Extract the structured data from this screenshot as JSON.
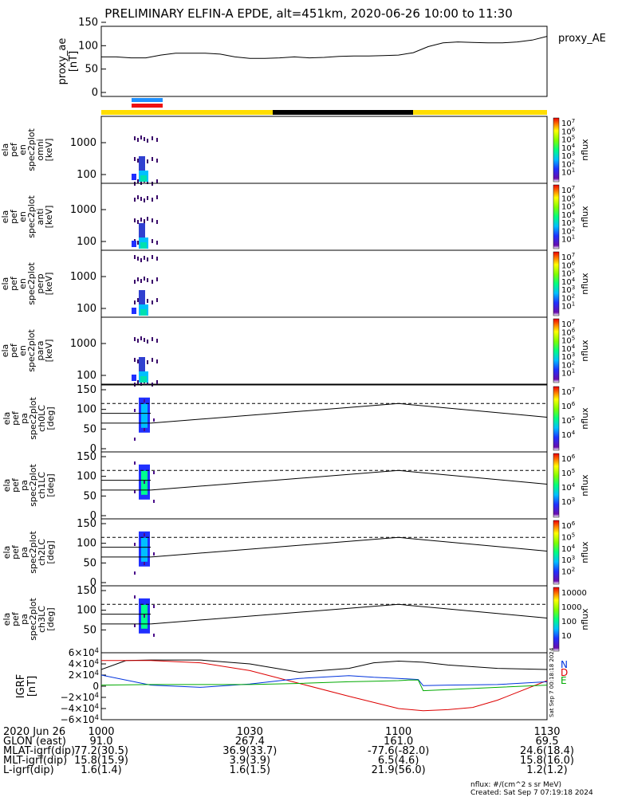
{
  "title": "PRELIMINARY ELFIN-A EPDE, alt=451km, 2020-06-26 10:00 to 11:30",
  "colors": {
    "bar_yellow": "#ffdd00",
    "bar_black": "#000000",
    "ind_blue": "#1e90ff",
    "ind_red": "#ee1111",
    "gsm_x": "#000000",
    "gsm_y": "#0033dd",
    "gsm_z": "#dd0000",
    "gsm_total": "#00aa00"
  },
  "chart_data": {
    "type": "line",
    "time_range": [
      "10:00",
      "11:30"
    ],
    "panels": [
      {
        "id": "ae",
        "ylabel_lines": [
          "proxy_ae",
          "[nT]"
        ],
        "yticks": [
          "150",
          "100",
          "50",
          "0"
        ],
        "legend": "proxy_AE",
        "ylim": [
          0,
          150
        ],
        "series": [
          {
            "x": [
              0,
              3,
              6,
              9,
              12,
              15,
              18,
              21,
              24,
              27,
              30,
              33,
              36,
              39,
              42,
              45,
              48,
              51,
              54,
              57,
              60,
              63,
              66,
              69,
              72,
              75,
              78,
              81,
              84,
              87,
              90
            ],
            "y": [
              76,
              76,
              74,
              74,
              80,
              84,
              84,
              84,
              82,
              76,
              73,
              73,
              74,
              76,
              74,
              75,
              77,
              78,
              78,
              79,
              80,
              85,
              98,
              106,
              108,
              107,
              106,
              106,
              108,
              112,
              120
            ]
          }
        ]
      },
      {
        "id": "omni",
        "ylabel_lines": [
          "ela",
          "pef",
          "en",
          "spec2plot",
          "omni",
          "[keV]"
        ],
        "yticks": [
          "1000",
          "100"
        ],
        "cbar_ticks": [
          "10^7",
          "10^6",
          "10^5",
          "10^4",
          "10^3",
          "10^2",
          "10^1"
        ],
        "cbar_label": "nflux"
      },
      {
        "id": "anti",
        "ylabel_lines": [
          "ela",
          "pef",
          "en",
          "spec2plot",
          "anti",
          "[keV]"
        ],
        "yticks": [
          "1000",
          "100"
        ],
        "cbar_ticks": [
          "10^7",
          "10^6",
          "10^5",
          "10^4",
          "10^3",
          "10^2",
          "10^1"
        ],
        "cbar_label": "nflux"
      },
      {
        "id": "perp",
        "ylabel_lines": [
          "ela",
          "pef",
          "en",
          "spec2plot",
          "perp",
          "[keV]"
        ],
        "yticks": [
          "1000",
          "100"
        ],
        "cbar_ticks": [
          "10^7",
          "10^6",
          "10^5",
          "10^4",
          "10^3",
          "10^2",
          "10^1"
        ],
        "cbar_label": "nflux"
      },
      {
        "id": "para",
        "ylabel_lines": [
          "ela",
          "pef",
          "en",
          "spec2plot",
          "para",
          "[keV]"
        ],
        "yticks": [
          "1000",
          "100"
        ],
        "cbar_ticks": [
          "10^7",
          "10^6",
          "10^5",
          "10^4",
          "10^3",
          "10^2",
          "10^1"
        ],
        "cbar_label": "nflux"
      },
      {
        "id": "ch0",
        "ylabel_lines": [
          "ela",
          "pef",
          "pa",
          "spec2plot",
          "ch0LC",
          "[deg]"
        ],
        "yticks": [
          "150",
          "100",
          "50",
          "0"
        ],
        "cbar_ticks": [
          "10^7",
          "10^6",
          "10^5",
          "10^4"
        ],
        "cbar_label": "nflux"
      },
      {
        "id": "ch1",
        "ylabel_lines": [
          "ela",
          "pef",
          "pa",
          "spec2plot",
          "ch1LC",
          "[deg]"
        ],
        "yticks": [
          "150",
          "100",
          "50",
          "0"
        ],
        "cbar_ticks": [
          "10^6",
          "10^5",
          "10^4",
          "10^3"
        ],
        "cbar_label": "nflux"
      },
      {
        "id": "ch2",
        "ylabel_lines": [
          "ela",
          "pef",
          "pa",
          "spec2plot",
          "ch2LC",
          "[deg]"
        ],
        "yticks": [
          "150",
          "100",
          "50",
          "0"
        ],
        "cbar_ticks": [
          "10^6",
          "10^5",
          "10^4",
          "10^3",
          "10^2"
        ],
        "cbar_label": "nflux"
      },
      {
        "id": "ch3",
        "ylabel_lines": [
          "ela",
          "pef",
          "pa",
          "spec2plot",
          "ch3LC",
          "[deg]"
        ],
        "yticks": [
          "150",
          "100",
          "50"
        ],
        "cbar_ticks": [
          "10000",
          "1000",
          "100",
          "10"
        ],
        "cbar_label": "nflux"
      },
      {
        "id": "igrf",
        "ylabel_lines": [
          "IGRF",
          "[nT]"
        ],
        "yticks": [
          "6×10^4",
          "4×10^4",
          "2×10^4",
          "0",
          "−2×10^4",
          "−4×10^4",
          "−6×10^4"
        ],
        "legend": [
          "N",
          "E",
          "D"
        ],
        "series": [
          {
            "name": "N",
            "x": [
              0,
              5,
              10,
              20,
              30,
              40,
              50,
              55,
              60,
              65,
              70,
              80,
              90
            ],
            "y": [
              30000,
              46000,
              47000,
              47000,
              40000,
              25000,
              32000,
              42000,
              45000,
              43000,
              38000,
              32000,
              30000
            ]
          },
          {
            "name": "D",
            "x": [
              0,
              10,
              20,
              30,
              40,
              50,
              60,
              65,
              70,
              75,
              80,
              90
            ],
            "y": [
              46000,
              46000,
              42000,
              28000,
              5000,
              -18000,
              -40000,
              -44000,
              -42000,
              -38000,
              -25000,
              10000
            ]
          },
          {
            "name": "E",
            "x": [
              0,
              10,
              20,
              30,
              40,
              50,
              55,
              60,
              62,
              64,
              65,
              70,
              80,
              90
            ],
            "y": [
              20000,
              2000,
              -2000,
              4000,
              14000,
              19000,
              16000,
              14000,
              13000,
              12000,
              1000,
              2000,
              3000,
              8000
            ]
          },
          {
            "name": "",
            "x": [
              0,
              10,
              20,
              30,
              40,
              50,
              55,
              60,
              62,
              64,
              65,
              70,
              80,
              90
            ],
            "y": [
              2000,
              3000,
              3000,
              3000,
              5000,
              8000,
              9000,
              10000,
              11000,
              11000,
              -8000,
              -6000,
              -2000,
              2000
            ]
          }
        ]
      }
    ],
    "pa_line": {
      "x": [
        0,
        60,
        90
      ],
      "y": [
        65,
        115,
        80
      ]
    },
    "pa_dash": 115,
    "pa_solid_flat": [
      90,
      65
    ]
  },
  "xaxis_rows": [
    {
      "label": "2020 Jun 26",
      "v": [
        "1000",
        "1030",
        "1100",
        "1130"
      ]
    },
    {
      "label": "GLON (east)",
      "v": [
        "91.0",
        "267.4",
        "161.0",
        "69.5"
      ]
    },
    {
      "label": "MLAT-igrf(dip)",
      "v": [
        "77.2(30.5)",
        "36.9(33.7)",
        "-77.6(-82.0)",
        "24.6(18.4)"
      ]
    },
    {
      "label": "MLT-igrf(dip)",
      "v": [
        "15.8(15.9)",
        "3.9(3.9)",
        "6.5(4.6)",
        "15.8(16.0)"
      ]
    },
    {
      "label": "L-igrf(dip)",
      "v": [
        "1.6(1.4)",
        "1.6(1.5)",
        "21.9(56.0)",
        "1.2(1.2)"
      ]
    }
  ],
  "footer": {
    "units": "nflux: #/(cm^2 s sr MeV)",
    "created": "Created: Sat Sep  7 07:19:18 2024",
    "side_stamp": "Sat Sep  7 00:18:18 2024"
  }
}
